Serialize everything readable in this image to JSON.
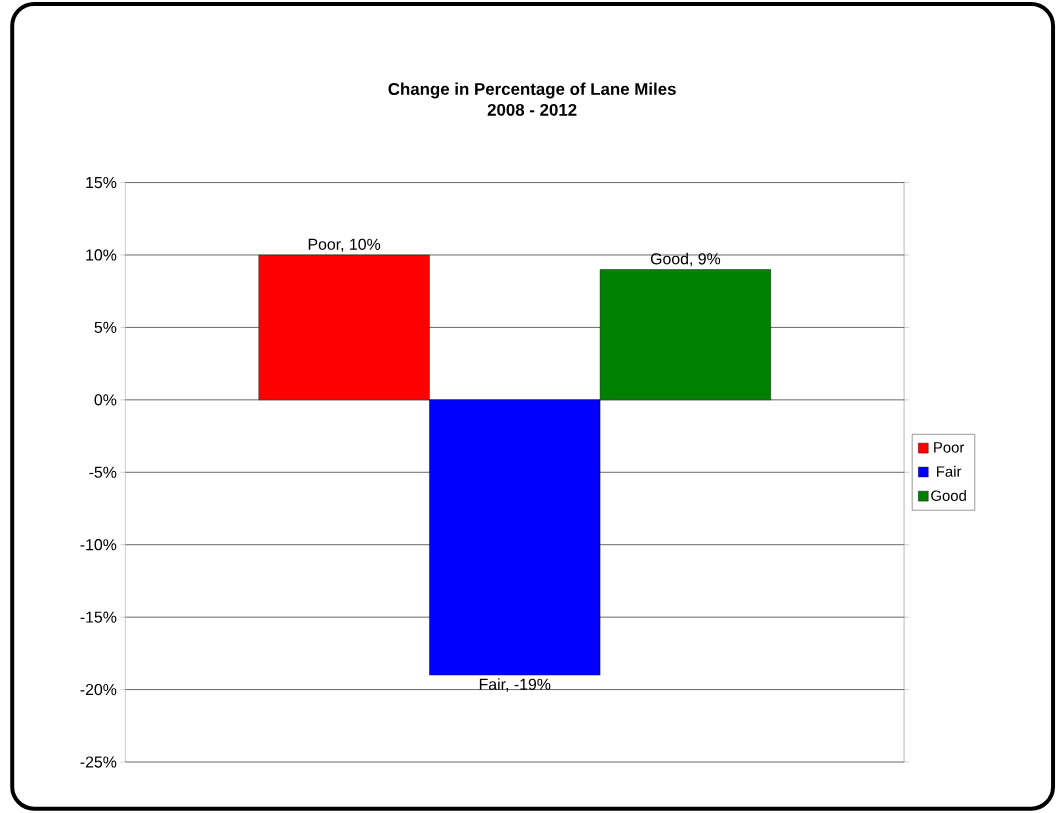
{
  "chart_data": {
    "type": "bar",
    "title": "Change in Percentage of Lane Miles",
    "subtitle": "2008 - 2012",
    "categories": [
      null
    ],
    "series": [
      {
        "name": "Poor",
        "color": "#ff0000",
        "values": [
          10
        ],
        "value_labels": [
          "Poor, 10%"
        ]
      },
      {
        "name": "Fair",
        "color": "#0000ff",
        "values": [
          -19
        ],
        "value_labels": [
          "Fair, -19%"
        ]
      },
      {
        "name": "Good",
        "color": "#008000",
        "values": [
          9
        ],
        "value_labels": [
          "Good, 9%"
        ]
      }
    ],
    "ylim": [
      -25,
      15
    ],
    "yticks": [
      {
        "value": -25,
        "label": "-25%"
      },
      {
        "value": -20,
        "label": "-20%"
      },
      {
        "value": -15,
        "label": "-15%"
      },
      {
        "value": -10,
        "label": "-10%"
      },
      {
        "value": -5,
        "label": "-5%"
      },
      {
        "value": 0,
        "label": "0%"
      },
      {
        "value": 5,
        "label": "5%"
      },
      {
        "value": 10,
        "label": "10%"
      },
      {
        "value": 15,
        "label": "15%"
      }
    ],
    "grid": "y",
    "legend": "right"
  }
}
